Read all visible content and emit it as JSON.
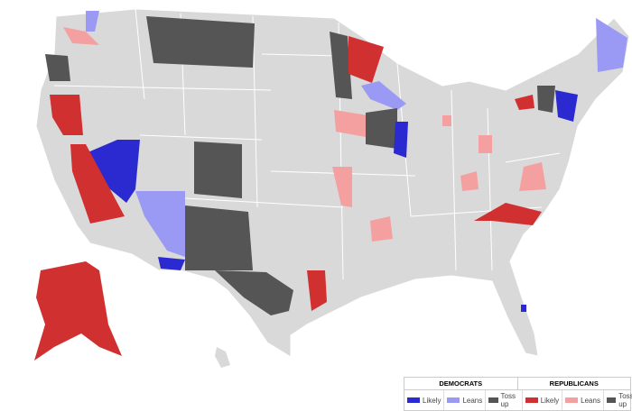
{
  "colors": {
    "base": "#d9d9d9",
    "dem_likely": "#2a2ad0",
    "dem_leans": "#9a9af5",
    "tossup": "#555555",
    "rep_likely": "#d03030",
    "rep_leans": "#f5a0a0"
  },
  "legend": {
    "democrats": {
      "title": "DEMOCRATS",
      "items": [
        {
          "label": "Likely",
          "color": "#2a2ad0"
        },
        {
          "label": "Leans",
          "color": "#9a9af5"
        },
        {
          "label": "Toss up",
          "color": "#555555"
        }
      ]
    },
    "republicans": {
      "title": "REPUBLICANS",
      "items": [
        {
          "label": "Likely",
          "color": "#d03030"
        },
        {
          "label": "Leans",
          "color": "#f5a0a0"
        },
        {
          "label": "Toss up",
          "color": "#555555"
        }
      ]
    }
  }
}
